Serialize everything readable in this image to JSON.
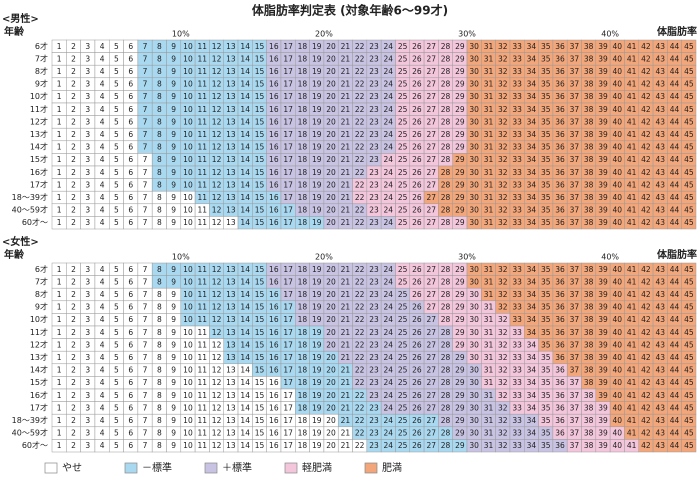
{
  "header": {
    "title": "体脂肪率判定表 (対象年齢6～99才)"
  },
  "percents": [
    1,
    2,
    3,
    4,
    5,
    6,
    7,
    8,
    9,
    10,
    11,
    12,
    13,
    14,
    15,
    16,
    17,
    18,
    19,
    20,
    21,
    22,
    23,
    24,
    25,
    26,
    27,
    28,
    29,
    30,
    31,
    32,
    33,
    34,
    35,
    36,
    37,
    38,
    39,
    40,
    41,
    42,
    43,
    44,
    45
  ],
  "legend": [
    {
      "label": "やせ",
      "color": "#ffffff"
    },
    {
      "label": "－標準",
      "color": "#a9d9f1"
    },
    {
      "label": "＋標準",
      "color": "#c9c3e3"
    },
    {
      "label": "軽肥満",
      "color": "#f3c6dc"
    },
    {
      "label": "肥満",
      "color": "#f2a67a"
    }
  ],
  "tables": [
    {
      "section": "<男性>",
      "age_label": "年齢",
      "unit_label": "体脂肪率",
      "markers": [
        "10%",
        "20%",
        "30%",
        "40%"
      ],
      "rows": [
        {
          "label": "6才",
          "bands": [
            7,
            16,
            25,
            30
          ]
        },
        {
          "label": "7才",
          "bands": [
            7,
            16,
            25,
            30
          ]
        },
        {
          "label": "8才",
          "bands": [
            7,
            16,
            25,
            30
          ]
        },
        {
          "label": "9才",
          "bands": [
            7,
            16,
            25,
            30
          ]
        },
        {
          "label": "10才",
          "bands": [
            7,
            16,
            25,
            30
          ]
        },
        {
          "label": "11才",
          "bands": [
            7,
            16,
            25,
            30
          ]
        },
        {
          "label": "12才",
          "bands": [
            7,
            16,
            25,
            30
          ]
        },
        {
          "label": "13才",
          "bands": [
            7,
            16,
            25,
            30
          ]
        },
        {
          "label": "14才",
          "bands": [
            7,
            16,
            25,
            30
          ]
        },
        {
          "label": "15才",
          "bands": [
            8,
            16,
            24,
            29
          ]
        },
        {
          "label": "16才",
          "bands": [
            8,
            16,
            23,
            28
          ]
        },
        {
          "label": "17才",
          "bands": [
            8,
            16,
            22,
            28
          ]
        },
        {
          "label": "18～39才",
          "bands": [
            11,
            17,
            22,
            27
          ]
        },
        {
          "label": "40～59才",
          "bands": [
            12,
            18,
            23,
            28
          ]
        },
        {
          "label": "60才～",
          "bands": [
            14,
            20,
            25,
            30
          ]
        }
      ]
    },
    {
      "section": "<女性>",
      "age_label": "年齢",
      "unit_label": "体脂肪率",
      "markers": [
        "10%",
        "20%",
        "30%",
        "40%"
      ],
      "rows": [
        {
          "label": "6才",
          "bands": [
            8,
            16,
            25,
            30
          ]
        },
        {
          "label": "7才",
          "bands": [
            8,
            16,
            25,
            30
          ]
        },
        {
          "label": "8才",
          "bands": [
            10,
            17,
            26,
            31
          ]
        },
        {
          "label": "9才",
          "bands": [
            10,
            18,
            27,
            32
          ]
        },
        {
          "label": "10才",
          "bands": [
            10,
            18,
            28,
            33
          ]
        },
        {
          "label": "11才",
          "bands": [
            12,
            20,
            29,
            34
          ]
        },
        {
          "label": "12才",
          "bands": [
            13,
            20,
            29,
            35
          ]
        },
        {
          "label": "13才",
          "bands": [
            13,
            21,
            30,
            36
          ]
        },
        {
          "label": "14才",
          "bands": [
            15,
            22,
            31,
            37
          ]
        },
        {
          "label": "15才",
          "bands": [
            17,
            22,
            31,
            38
          ]
        },
        {
          "label": "16才",
          "bands": [
            18,
            23,
            32,
            39
          ]
        },
        {
          "label": "17才",
          "bands": [
            18,
            24,
            33,
            40
          ]
        },
        {
          "label": "18～39才",
          "bands": [
            21,
            28,
            35,
            40
          ]
        },
        {
          "label": "40～59才",
          "bands": [
            22,
            29,
            36,
            41
          ]
        },
        {
          "label": "60才～",
          "bands": [
            23,
            30,
            37,
            42
          ]
        }
      ]
    }
  ]
}
